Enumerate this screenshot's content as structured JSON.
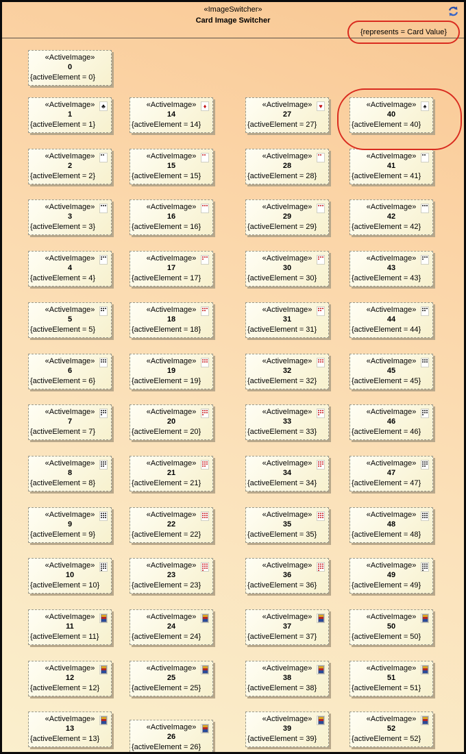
{
  "header": {
    "stereotype": "«ImageSwitcher»",
    "title": "Card Image Switcher",
    "constraint": "{represents = Card Value}",
    "accent_color": "#d92b1f",
    "refresh_icon_color": "#2b4fa8"
  },
  "highlight": {
    "highlighted_card": 40
  },
  "colors": {
    "suit_black": "#161616",
    "suit_red": "#c41414",
    "card_fill": "#faf4d4",
    "background_top": "#f8c793",
    "background_bottom": "#faefcd"
  },
  "cards": [
    {
      "id": 0,
      "stereotype": "«ActiveImage»",
      "name": "0",
      "property": "{activeElement = 0}",
      "suit": "none",
      "rank": 0
    },
    {
      "id": 1,
      "stereotype": "«ActiveImage»",
      "name": "1",
      "property": "{activeElement = 1}",
      "suit": "clubs",
      "rank": 1
    },
    {
      "id": 2,
      "stereotype": "«ActiveImage»",
      "name": "2",
      "property": "{activeElement = 2}",
      "suit": "clubs",
      "rank": 2
    },
    {
      "id": 3,
      "stereotype": "«ActiveImage»",
      "name": "3",
      "property": "{activeElement = 3}",
      "suit": "clubs",
      "rank": 3
    },
    {
      "id": 4,
      "stereotype": "«ActiveImage»",
      "name": "4",
      "property": "{activeElement = 4}",
      "suit": "clubs",
      "rank": 4
    },
    {
      "id": 5,
      "stereotype": "«ActiveImage»",
      "name": "5",
      "property": "{activeElement = 5}",
      "suit": "clubs",
      "rank": 5
    },
    {
      "id": 6,
      "stereotype": "«ActiveImage»",
      "name": "6",
      "property": "{activeElement = 6}",
      "suit": "clubs",
      "rank": 6
    },
    {
      "id": 7,
      "stereotype": "«ActiveImage»",
      "name": "7",
      "property": "{activeElement = 7}",
      "suit": "clubs",
      "rank": 7
    },
    {
      "id": 8,
      "stereotype": "«ActiveImage»",
      "name": "8",
      "property": "{activeElement = 8}",
      "suit": "clubs",
      "rank": 8
    },
    {
      "id": 9,
      "stereotype": "«ActiveImage»",
      "name": "9",
      "property": "{activeElement = 9}",
      "suit": "clubs",
      "rank": 9
    },
    {
      "id": 10,
      "stereotype": "«ActiveImage»",
      "name": "10",
      "property": "{activeElement = 10}",
      "suit": "clubs",
      "rank": 10
    },
    {
      "id": 11,
      "stereotype": "«ActiveImage»",
      "name": "11",
      "property": "{activeElement = 11}",
      "suit": "clubs",
      "rank": 11
    },
    {
      "id": 12,
      "stereotype": "«ActiveImage»",
      "name": "12",
      "property": "{activeElement = 12}",
      "suit": "clubs",
      "rank": 12
    },
    {
      "id": 13,
      "stereotype": "«ActiveImage»",
      "name": "13",
      "property": "{activeElement = 13}",
      "suit": "clubs",
      "rank": 13
    },
    {
      "id": 14,
      "stereotype": "«ActiveImage»",
      "name": "14",
      "property": "{activeElement = 14}",
      "suit": "diamonds",
      "rank": 1
    },
    {
      "id": 15,
      "stereotype": "«ActiveImage»",
      "name": "15",
      "property": "{activeElement = 15}",
      "suit": "diamonds",
      "rank": 2
    },
    {
      "id": 16,
      "stereotype": "«ActiveImage»",
      "name": "16",
      "property": "{activeElement = 16}",
      "suit": "diamonds",
      "rank": 3
    },
    {
      "id": 17,
      "stereotype": "«ActiveImage»",
      "name": "17",
      "property": "{activeElement = 17}",
      "suit": "diamonds",
      "rank": 4
    },
    {
      "id": 18,
      "stereotype": "«ActiveImage»",
      "name": "18",
      "property": "{activeElement = 18}",
      "suit": "diamonds",
      "rank": 5
    },
    {
      "id": 19,
      "stereotype": "«ActiveImage»",
      "name": "19",
      "property": "{activeElement = 19}",
      "suit": "diamonds",
      "rank": 6
    },
    {
      "id": 20,
      "stereotype": "«ActiveImage»",
      "name": "20",
      "property": "{activeElement = 20}",
      "suit": "diamonds",
      "rank": 7
    },
    {
      "id": 21,
      "stereotype": "«ActiveImage»",
      "name": "21",
      "property": "{activeElement = 21}",
      "suit": "diamonds",
      "rank": 8
    },
    {
      "id": 22,
      "stereotype": "«ActiveImage»",
      "name": "22",
      "property": "{activeElement = 22}",
      "suit": "diamonds",
      "rank": 9
    },
    {
      "id": 23,
      "stereotype": "«ActiveImage»",
      "name": "23",
      "property": "{activeElement = 23}",
      "suit": "diamonds",
      "rank": 10
    },
    {
      "id": 24,
      "stereotype": "«ActiveImage»",
      "name": "24",
      "property": "{activeElement = 24}",
      "suit": "diamonds",
      "rank": 11
    },
    {
      "id": 25,
      "stereotype": "«ActiveImage»",
      "name": "25",
      "property": "{activeElement = 25}",
      "suit": "diamonds",
      "rank": 12
    },
    {
      "id": 26,
      "stereotype": "«ActiveImage»",
      "name": "26",
      "property": "{activeElement = 26}",
      "suit": "diamonds",
      "rank": 13
    },
    {
      "id": 27,
      "stereotype": "«ActiveImage»",
      "name": "27",
      "property": "{activeElement = 27}",
      "suit": "hearts",
      "rank": 1
    },
    {
      "id": 28,
      "stereotype": "«ActiveImage»",
      "name": "28",
      "property": "{activeElement = 28}",
      "suit": "hearts",
      "rank": 2
    },
    {
      "id": 29,
      "stereotype": "«ActiveImage»",
      "name": "29",
      "property": "{activeElement = 29}",
      "suit": "hearts",
      "rank": 3
    },
    {
      "id": 30,
      "stereotype": "«ActiveImage»",
      "name": "30",
      "property": "{activeElement = 30}",
      "suit": "hearts",
      "rank": 4
    },
    {
      "id": 31,
      "stereotype": "«ActiveImage»",
      "name": "31",
      "property": "{activeElement = 31}",
      "suit": "hearts",
      "rank": 5
    },
    {
      "id": 32,
      "stereotype": "«ActiveImage»",
      "name": "32",
      "property": "{activeElement = 32}",
      "suit": "hearts",
      "rank": 6
    },
    {
      "id": 33,
      "stereotype": "«ActiveImage»",
      "name": "33",
      "property": "{activeElement = 33}",
      "suit": "hearts",
      "rank": 7
    },
    {
      "id": 34,
      "stereotype": "«ActiveImage»",
      "name": "34",
      "property": "{activeElement = 34}",
      "suit": "hearts",
      "rank": 8
    },
    {
      "id": 35,
      "stereotype": "«ActiveImage»",
      "name": "35",
      "property": "{activeElement = 35}",
      "suit": "hearts",
      "rank": 9
    },
    {
      "id": 36,
      "stereotype": "«ActiveImage»",
      "name": "36",
      "property": "{activeElement = 36}",
      "suit": "hearts",
      "rank": 10
    },
    {
      "id": 37,
      "stereotype": "«ActiveImage»",
      "name": "37",
      "property": "{activeElement = 37}",
      "suit": "hearts",
      "rank": 11
    },
    {
      "id": 38,
      "stereotype": "«ActiveImage»",
      "name": "38",
      "property": "{activeElement = 38}",
      "suit": "hearts",
      "rank": 12
    },
    {
      "id": 39,
      "stereotype": "«ActiveImage»",
      "name": "39",
      "property": "{activeElement = 39}",
      "suit": "hearts",
      "rank": 13
    },
    {
      "id": 40,
      "stereotype": "«ActiveImage»",
      "name": "40",
      "property": "{activeElement = 40}",
      "suit": "spades",
      "rank": 1
    },
    {
      "id": 41,
      "stereotype": "«ActiveImage»",
      "name": "41",
      "property": "{activeElement = 41}",
      "suit": "spades",
      "rank": 2
    },
    {
      "id": 42,
      "stereotype": "«ActiveImage»",
      "name": "42",
      "property": "{activeElement = 42}",
      "suit": "spades",
      "rank": 3
    },
    {
      "id": 43,
      "stereotype": "«ActiveImage»",
      "name": "43",
      "property": "{activeElement = 43}",
      "suit": "spades",
      "rank": 4
    },
    {
      "id": 44,
      "stereotype": "«ActiveImage»",
      "name": "44",
      "property": "{activeElement = 44}",
      "suit": "spades",
      "rank": 5
    },
    {
      "id": 45,
      "stereotype": "«ActiveImage»",
      "name": "45",
      "property": "{activeElement = 45}",
      "suit": "spades",
      "rank": 6
    },
    {
      "id": 46,
      "stereotype": "«ActiveImage»",
      "name": "46",
      "property": "{activeElement = 46}",
      "suit": "spades",
      "rank": 7
    },
    {
      "id": 47,
      "stereotype": "«ActiveImage»",
      "name": "47",
      "property": "{activeElement = 47}",
      "suit": "spades",
      "rank": 8
    },
    {
      "id": 48,
      "stereotype": "«ActiveImage»",
      "name": "48",
      "property": "{activeElement = 48}",
      "suit": "spades",
      "rank": 9
    },
    {
      "id": 49,
      "stereotype": "«ActiveImage»",
      "name": "49",
      "property": "{activeElement = 49}",
      "suit": "spades",
      "rank": 10
    },
    {
      "id": 50,
      "stereotype": "«ActiveImage»",
      "name": "50",
      "property": "{activeElement = 50}",
      "suit": "spades",
      "rank": 11
    },
    {
      "id": 51,
      "stereotype": "«ActiveImage»",
      "name": "51",
      "property": "{activeElement = 51}",
      "suit": "spades",
      "rank": 12
    },
    {
      "id": 52,
      "stereotype": "«ActiveImage»",
      "name": "52",
      "property": "{activeElement = 52}",
      "suit": "spades",
      "rank": 13
    }
  ]
}
